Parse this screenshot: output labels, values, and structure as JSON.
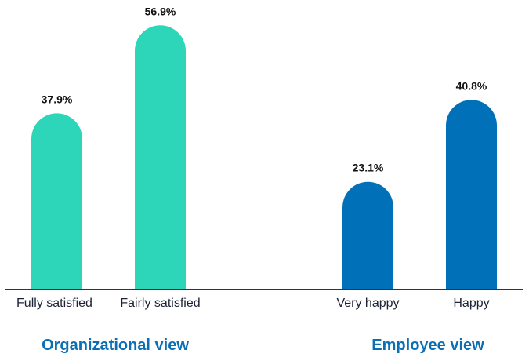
{
  "chart_data": {
    "type": "bar",
    "categories": [
      "Fully satisfied",
      "Fairly satisfied",
      "Very happy",
      "Happy"
    ],
    "values": [
      37.9,
      56.9,
      23.1,
      40.8
    ],
    "value_labels": [
      "37.9%",
      "56.9%",
      "23.1%",
      "40.8%"
    ],
    "groups": [
      {
        "label": "Organizational view",
        "categories": [
          "Fully satisfied",
          "Fairly satisfied"
        ],
        "color": "#2dd6b8"
      },
      {
        "label": "Employee view",
        "categories": [
          "Very happy",
          "Happy"
        ],
        "color": "#0070b8"
      }
    ],
    "title": "",
    "xlabel": "",
    "ylabel": "",
    "ylim": [
      0,
      60
    ],
    "grid": false,
    "legend": "none"
  }
}
